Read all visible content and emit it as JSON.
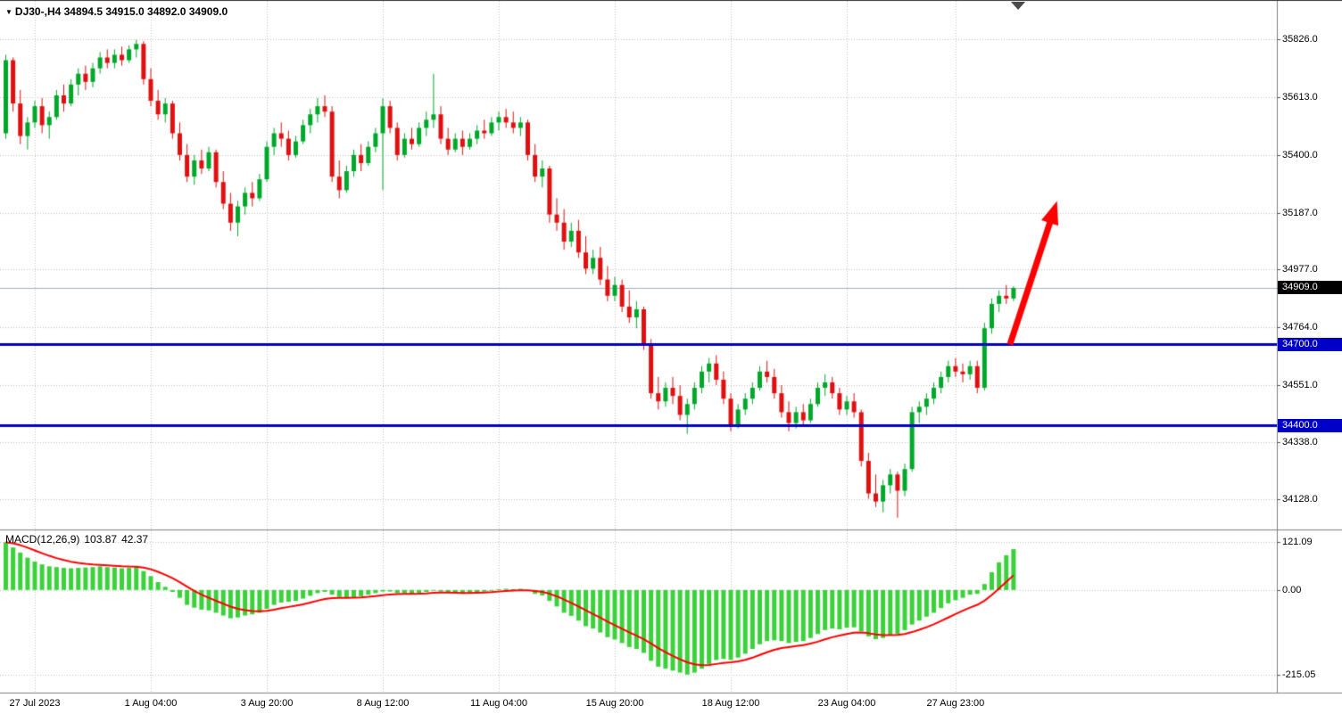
{
  "window": {
    "background": "#ffffff"
  },
  "icons": {
    "symbol_marker": "▼"
  },
  "chart_data": [
    {
      "type": "candlestick",
      "symbol": "DJ30-",
      "timeframe": "H4",
      "header_text": "DJ30-,H4 34894.5 34915.0 34892.0 34909.0",
      "ohlc_display": {
        "open": "34894.5",
        "high": "34915.0",
        "low": "34892.0",
        "close": "34909.0"
      },
      "y_ticks": [
        35826.0,
        35613.0,
        35400.0,
        35187.0,
        34977.0,
        34764.0,
        34551.0,
        34338.0,
        34128.0
      ],
      "y_range": [
        34030,
        35890
      ],
      "current_price": 34909.0,
      "current_price_label": "34909.0",
      "hlines": [
        {
          "price": 34700.0,
          "label": "34700.0"
        },
        {
          "price": 34400.0,
          "label": "34400.0"
        }
      ],
      "x_ticks": [
        {
          "index": 4,
          "label": "27 Jul 2023"
        },
        {
          "index": 20,
          "label": "1 Aug 04:00"
        },
        {
          "index": 36,
          "label": "3 Aug 20:00"
        },
        {
          "index": 52,
          "label": "8 Aug 12:00"
        },
        {
          "index": 68,
          "label": "11 Aug 04:00"
        },
        {
          "index": 84,
          "label": "15 Aug 20:00"
        },
        {
          "index": 100,
          "label": "18 Aug 12:00"
        },
        {
          "index": 116,
          "label": "23 Aug 04:00"
        },
        {
          "index": 131,
          "label": "27 Aug 23:00"
        }
      ],
      "arrow": {
        "from": {
          "index": 138.5,
          "price": 34700
        },
        "to": {
          "index": 145,
          "price": 35230
        }
      },
      "colors": {
        "up": "#00a82a",
        "down": "#e01010",
        "hline": "#0000c8",
        "current_price_line": "#9ab4c6",
        "grid": "#c2c2c2",
        "arrow": "#fe0000",
        "separator": "#808080",
        "axis_text": "#000000"
      },
      "candles": [
        [
          35480,
          35770,
          35460,
          35750
        ],
        [
          35750,
          35760,
          35560,
          35590
        ],
        [
          35590,
          35640,
          35440,
          35470
        ],
        [
          35470,
          35540,
          35420,
          35520
        ],
        [
          35520,
          35600,
          35500,
          35580
        ],
        [
          35580,
          35610,
          35480,
          35510
        ],
        [
          35510,
          35560,
          35460,
          35540
        ],
        [
          35540,
          35640,
          35530,
          35620
        ],
        [
          35620,
          35660,
          35560,
          35590
        ],
        [
          35590,
          35680,
          35580,
          35660
        ],
        [
          35660,
          35720,
          35620,
          35700
        ],
        [
          35700,
          35730,
          35640,
          35670
        ],
        [
          35670,
          35740,
          35650,
          35720
        ],
        [
          35720,
          35780,
          35700,
          35760
        ],
        [
          35760,
          35790,
          35720,
          35740
        ],
        [
          35740,
          35790,
          35720,
          35770
        ],
        [
          35770,
          35800,
          35730,
          35750
        ],
        [
          35750,
          35805,
          35740,
          35790
        ],
        [
          35790,
          35825,
          35760,
          35810
        ],
        [
          35810,
          35820,
          35660,
          35680
        ],
        [
          35680,
          35720,
          35580,
          35600
        ],
        [
          35600,
          35640,
          35530,
          35550
        ],
        [
          35550,
          35610,
          35520,
          35590
        ],
        [
          35590,
          35600,
          35460,
          35480
        ],
        [
          35480,
          35520,
          35380,
          35400
        ],
        [
          35400,
          35440,
          35300,
          35320
        ],
        [
          35320,
          35400,
          35290,
          35380
        ],
        [
          35380,
          35420,
          35330,
          35350
        ],
        [
          35350,
          35430,
          35340,
          35410
        ],
        [
          35410,
          35420,
          35280,
          35300
        ],
        [
          35300,
          35340,
          35200,
          35220
        ],
        [
          35220,
          35260,
          35120,
          35150
        ],
        [
          35150,
          35230,
          35100,
          35210
        ],
        [
          35210,
          35280,
          35180,
          35260
        ],
        [
          35260,
          35300,
          35210,
          35240
        ],
        [
          35240,
          35330,
          35230,
          35310
        ],
        [
          35310,
          35450,
          35300,
          35430
        ],
        [
          35430,
          35500,
          35400,
          35480
        ],
        [
          35480,
          35520,
          35430,
          35460
        ],
        [
          35460,
          35490,
          35380,
          35400
        ],
        [
          35400,
          35470,
          35390,
          35450
        ],
        [
          35450,
          35530,
          35440,
          35510
        ],
        [
          35510,
          35570,
          35480,
          35550
        ],
        [
          35550,
          35610,
          35520,
          35580
        ],
        [
          35580,
          35620,
          35540,
          35560
        ],
        [
          35560,
          35580,
          35300,
          35320
        ],
        [
          35320,
          35380,
          35240,
          35270
        ],
        [
          35270,
          35360,
          35260,
          35340
        ],
        [
          35340,
          35420,
          35320,
          35400
        ],
        [
          35400,
          35440,
          35340,
          35370
        ],
        [
          35370,
          35450,
          35360,
          35430
        ],
        [
          35430,
          35500,
          35410,
          35480
        ],
        [
          35480,
          35610,
          35270,
          35580
        ],
        [
          35580,
          35600,
          35480,
          35500
        ],
        [
          35500,
          35520,
          35380,
          35400
        ],
        [
          35400,
          35480,
          35390,
          35460
        ],
        [
          35460,
          35500,
          35420,
          35440
        ],
        [
          35440,
          35520,
          35430,
          35500
        ],
        [
          35500,
          35560,
          35470,
          35530
        ],
        [
          35530,
          35700,
          35500,
          35550
        ],
        [
          35550,
          35580,
          35440,
          35460
        ],
        [
          35460,
          35500,
          35400,
          35420
        ],
        [
          35420,
          35480,
          35410,
          35460
        ],
        [
          35460,
          35490,
          35400,
          35430
        ],
        [
          35430,
          35480,
          35420,
          35460
        ],
        [
          35460,
          35510,
          35440,
          35490
        ],
        [
          35490,
          35530,
          35460,
          35480
        ],
        [
          35480,
          35540,
          35470,
          35520
        ],
        [
          35520,
          35560,
          35490,
          35540
        ],
        [
          35540,
          35570,
          35500,
          35520
        ],
        [
          35520,
          35560,
          35480,
          35500
        ],
        [
          35500,
          35540,
          35470,
          35520
        ],
        [
          35520,
          35530,
          35380,
          35400
        ],
        [
          35400,
          35440,
          35300,
          35320
        ],
        [
          35320,
          35380,
          35280,
          35350
        ],
        [
          35350,
          35360,
          35150,
          35180
        ],
        [
          35180,
          35240,
          35120,
          35150
        ],
        [
          35150,
          35200,
          35050,
          35080
        ],
        [
          35080,
          35150,
          35060,
          35120
        ],
        [
          35120,
          35160,
          35020,
          35040
        ],
        [
          35040,
          35100,
          34960,
          34980
        ],
        [
          34980,
          35050,
          34960,
          35020
        ],
        [
          35020,
          35060,
          34920,
          34940
        ],
        [
          34940,
          34990,
          34860,
          34880
        ],
        [
          34880,
          34950,
          34860,
          34920
        ],
        [
          34920,
          34940,
          34820,
          34840
        ],
        [
          34840,
          34900,
          34780,
          34800
        ],
        [
          34800,
          34860,
          34760,
          34830
        ],
        [
          34830,
          34840,
          34680,
          34700
        ],
        [
          34700,
          34720,
          34500,
          34520
        ],
        [
          34520,
          34580,
          34460,
          34490
        ],
        [
          34490,
          34560,
          34470,
          34540
        ],
        [
          34540,
          34580,
          34480,
          34510
        ],
        [
          34510,
          34550,
          34420,
          34440
        ],
        [
          34440,
          34500,
          34370,
          34480
        ],
        [
          34480,
          34560,
          34460,
          34540
        ],
        [
          34540,
          34620,
          34520,
          34600
        ],
        [
          34600,
          34650,
          34560,
          34630
        ],
        [
          34630,
          34660,
          34550,
          34570
        ],
        [
          34570,
          34600,
          34480,
          34500
        ],
        [
          34500,
          34520,
          34380,
          34400
        ],
        [
          34400,
          34480,
          34390,
          34460
        ],
        [
          34460,
          34520,
          34440,
          34500
        ],
        [
          34500,
          34560,
          34480,
          34540
        ],
        [
          34540,
          34620,
          34530,
          34600
        ],
        [
          34600,
          34640,
          34560,
          34580
        ],
        [
          34580,
          34610,
          34500,
          34520
        ],
        [
          34520,
          34550,
          34430,
          34450
        ],
        [
          34450,
          34490,
          34380,
          34410
        ],
        [
          34410,
          34470,
          34390,
          34450
        ],
        [
          34450,
          34480,
          34400,
          34420
        ],
        [
          34420,
          34500,
          34410,
          34480
        ],
        [
          34480,
          34560,
          34470,
          34540
        ],
        [
          34540,
          34590,
          34510,
          34560
        ],
        [
          34560,
          34580,
          34500,
          34520
        ],
        [
          34520,
          34540,
          34440,
          34460
        ],
        [
          34460,
          34510,
          34440,
          34490
        ],
        [
          34490,
          34520,
          34430,
          34450
        ],
        [
          34450,
          34460,
          34250,
          34270
        ],
        [
          34270,
          34300,
          34130,
          34150
        ],
        [
          34150,
          34220,
          34100,
          34120
        ],
        [
          34120,
          34200,
          34080,
          34180
        ],
        [
          34180,
          34240,
          34150,
          34220
        ],
        [
          34220,
          34230,
          34060,
          34160
        ],
        [
          34160,
          34260,
          34140,
          34240
        ],
        [
          34240,
          34470,
          34230,
          34450
        ],
        [
          34450,
          34490,
          34410,
          34470
        ],
        [
          34470,
          34520,
          34440,
          34500
        ],
        [
          34500,
          34560,
          34480,
          34540
        ],
        [
          34540,
          34600,
          34520,
          34580
        ],
        [
          34580,
          34640,
          34560,
          34620
        ],
        [
          34620,
          34650,
          34580,
          34600
        ],
        [
          34600,
          34630,
          34560,
          34590
        ],
        [
          34590,
          34640,
          34570,
          34620
        ],
        [
          34620,
          34640,
          34520,
          34540
        ],
        [
          34540,
          34780,
          34530,
          34760
        ],
        [
          34760,
          34870,
          34740,
          34850
        ],
        [
          34850,
          34900,
          34820,
          34880
        ],
        [
          34880,
          34920,
          34850,
          34870
        ],
        [
          34870,
          34915,
          34860,
          34909
        ]
      ]
    },
    {
      "type": "bar",
      "title": "MACD(12,26,9)",
      "main_value": "103.87",
      "signal_value": "42.37",
      "y_ticks": [
        121.09,
        0,
        -215.05
      ],
      "y_tick_labels": [
        "121.09",
        "0.00",
        "-215.05"
      ],
      "y_range": [
        -245,
        140
      ],
      "signal_period": 9,
      "colors": {
        "histogram": "#3bd13b",
        "signal": "#ff0000"
      },
      "histogram": [
        121.09,
        108,
        95,
        82,
        72,
        65,
        60,
        58,
        56,
        55,
        56,
        57,
        58,
        60,
        58,
        57,
        55,
        56,
        58,
        48,
        35,
        20,
        8,
        -5,
        -20,
        -38,
        -45,
        -50,
        -52,
        -58,
        -65,
        -72,
        -70,
        -65,
        -62,
        -58,
        -48,
        -38,
        -32,
        -30,
        -28,
        -22,
        -15,
        -8,
        -5,
        -12,
        -18,
        -20,
        -18,
        -16,
        -12,
        -8,
        -4,
        -4,
        -8,
        -8,
        -10,
        -8,
        -5,
        0,
        -4,
        -8,
        -8,
        -10,
        -8,
        -5,
        -4,
        -2,
        2,
        3,
        2,
        3,
        -2,
        -10,
        -14,
        -28,
        -42,
        -58,
        -66,
        -78,
        -92,
        -98,
        -108,
        -120,
        -126,
        -135,
        -145,
        -150,
        -160,
        -180,
        -195,
        -200,
        -205,
        -210,
        -215.05,
        -210,
        -200,
        -188,
        -178,
        -175,
        -178,
        -172,
        -162,
        -150,
        -138,
        -130,
        -128,
        -130,
        -135,
        -132,
        -130,
        -122,
        -112,
        -102,
        -98,
        -100,
        -96,
        -95,
        -105,
        -118,
        -125,
        -122,
        -115,
        -112,
        -102,
        -88,
        -78,
        -68,
        -58,
        -46,
        -34,
        -26,
        -20,
        -12,
        -10,
        15,
        45,
        70,
        88,
        103.87
      ]
    }
  ]
}
